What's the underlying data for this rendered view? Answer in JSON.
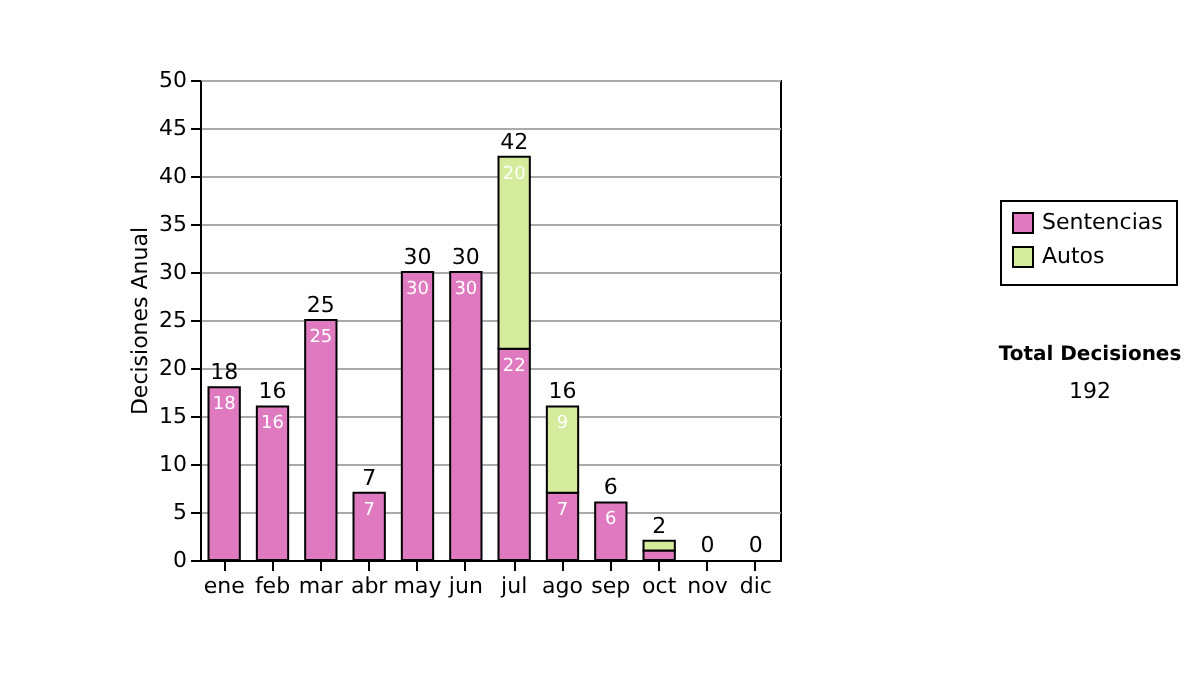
{
  "chart_data": {
    "type": "bar",
    "stacked": true,
    "ylabel": "Decisiones Anual",
    "categories": [
      "ene",
      "feb",
      "mar",
      "abr",
      "may",
      "jun",
      "jul",
      "ago",
      "sep",
      "oct",
      "nov",
      "dic"
    ],
    "series": [
      {
        "name": "Sentencias",
        "color": "#e07ac0",
        "values": [
          18,
          16,
          25,
          7,
          30,
          30,
          22,
          7,
          6,
          1,
          0,
          0
        ],
        "value_labels": [
          "18",
          "16",
          "25",
          "7",
          "30",
          "30",
          "22",
          "7",
          "6",
          null,
          null,
          null
        ]
      },
      {
        "name": "Autos",
        "color": "#d4ec9c",
        "values": [
          0,
          0,
          0,
          0,
          0,
          0,
          20,
          9,
          0,
          1,
          0,
          0
        ],
        "value_labels": [
          null,
          null,
          null,
          null,
          null,
          null,
          "20",
          "9",
          null,
          null,
          null,
          null
        ]
      }
    ],
    "totals": [
      "18",
      "16",
      "25",
      "7",
      "30",
      "30",
      "42",
      "16",
      "6",
      "2",
      "0",
      "0"
    ],
    "ylim": [
      0,
      50
    ],
    "yticks": [
      0,
      5,
      10,
      15,
      20,
      25,
      30,
      35,
      40,
      45,
      50
    ],
    "grid": "y",
    "legend": "right",
    "annotations": [
      "Total Decisiones",
      "192"
    ]
  }
}
